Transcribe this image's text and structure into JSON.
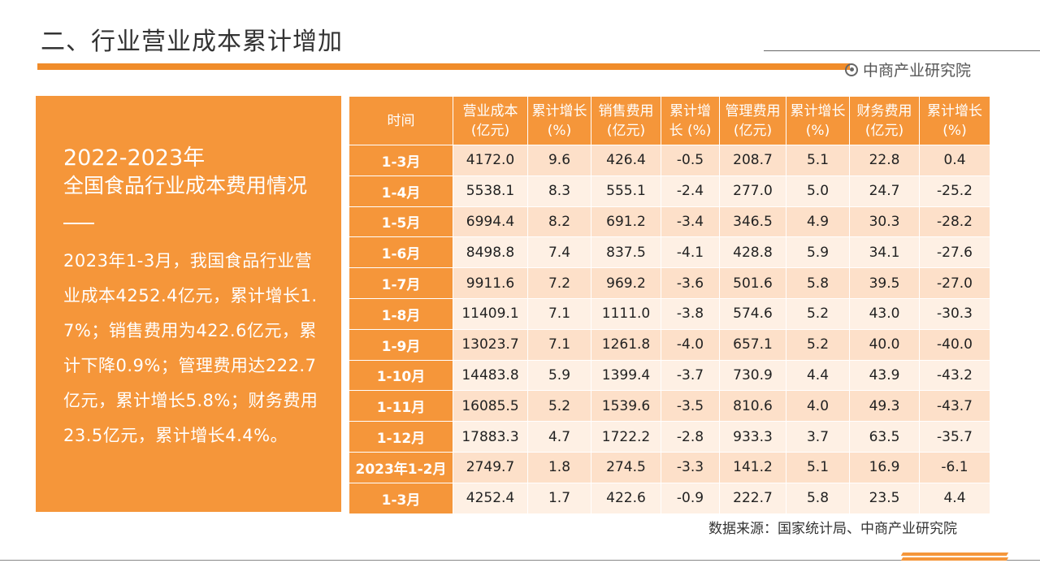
{
  "header": {
    "title": "二、行业营业成本累计增加",
    "brand": "中商产业研究院"
  },
  "panel": {
    "year": "2022-2023年",
    "heading": "全国食品行业成本费用情况",
    "body": "2023年1-3月，我国食品行业营业成本4252.4亿元，累计增长1.7%；销售费用为422.6亿元，累计下降0.9%；管理费用达222.7亿元，累计增长5.8%；财务费用23.5亿元，累计增长4.4%。"
  },
  "table": {
    "headers": [
      [
        "时间",
        ""
      ],
      [
        "营业成本",
        "(亿元)"
      ],
      [
        "累计增长",
        "(%)"
      ],
      [
        "销售费用",
        "(亿元)"
      ],
      [
        "累计增",
        "长 (%)"
      ],
      [
        "管理费用",
        "(亿元)"
      ],
      [
        "累计增长",
        "(%)"
      ],
      [
        "财务费用",
        "(亿元)"
      ],
      [
        "累计增长",
        "(%)"
      ]
    ],
    "rows": [
      [
        "1-3月",
        "4172.0",
        "9.6",
        "426.4",
        "-0.5",
        "208.7",
        "5.1",
        "22.8",
        "0.4"
      ],
      [
        "1-4月",
        "5538.1",
        "8.3",
        "555.1",
        "-2.4",
        "277.0",
        "5.0",
        "24.7",
        "-25.2"
      ],
      [
        "1-5月",
        "6994.4",
        "8.2",
        "691.2",
        "-3.4",
        "346.5",
        "4.9",
        "30.3",
        "-28.2"
      ],
      [
        "1-6月",
        "8498.8",
        "7.4",
        "837.5",
        "-4.1",
        "428.8",
        "5.9",
        "34.1",
        "-27.6"
      ],
      [
        "1-7月",
        "9911.6",
        "7.2",
        "969.2",
        "-3.6",
        "501.6",
        "5.8",
        "39.5",
        "-27.0"
      ],
      [
        "1-8月",
        "11409.1",
        "7.1",
        "1111.0",
        "-3.8",
        "574.6",
        "5.2",
        "43.0",
        "-30.3"
      ],
      [
        "1-9月",
        "13023.7",
        "7.1",
        "1261.8",
        "-4.0",
        "657.1",
        "5.2",
        "40.0",
        "-40.0"
      ],
      [
        "1-10月",
        "14483.8",
        "5.9",
        "1399.4",
        "-3.7",
        "730.9",
        "4.4",
        "43.9",
        "-43.2"
      ],
      [
        "1-11月",
        "16085.5",
        "5.2",
        "1539.6",
        "-3.5",
        "810.6",
        "4.0",
        "49.3",
        "-43.7"
      ],
      [
        "1-12月",
        "17883.3",
        "4.7",
        "1722.2",
        "-2.8",
        "933.3",
        "3.7",
        "63.5",
        "-35.7"
      ],
      [
        "2023年1-2月",
        "2749.7",
        "1.8",
        "274.5",
        "-3.3",
        "141.2",
        "5.1",
        "16.9",
        "-6.1"
      ],
      [
        "1-3月",
        "4252.4",
        "1.7",
        "422.6",
        "-0.9",
        "222.7",
        "5.8",
        "23.5",
        "4.4"
      ]
    ]
  },
  "footer": {
    "source": "数据来源：国家统计局、中商产业研究院"
  },
  "colors": {
    "accent": "#f5963a",
    "row_odd": "#fde0c9",
    "row_even": "#fef0e4"
  }
}
